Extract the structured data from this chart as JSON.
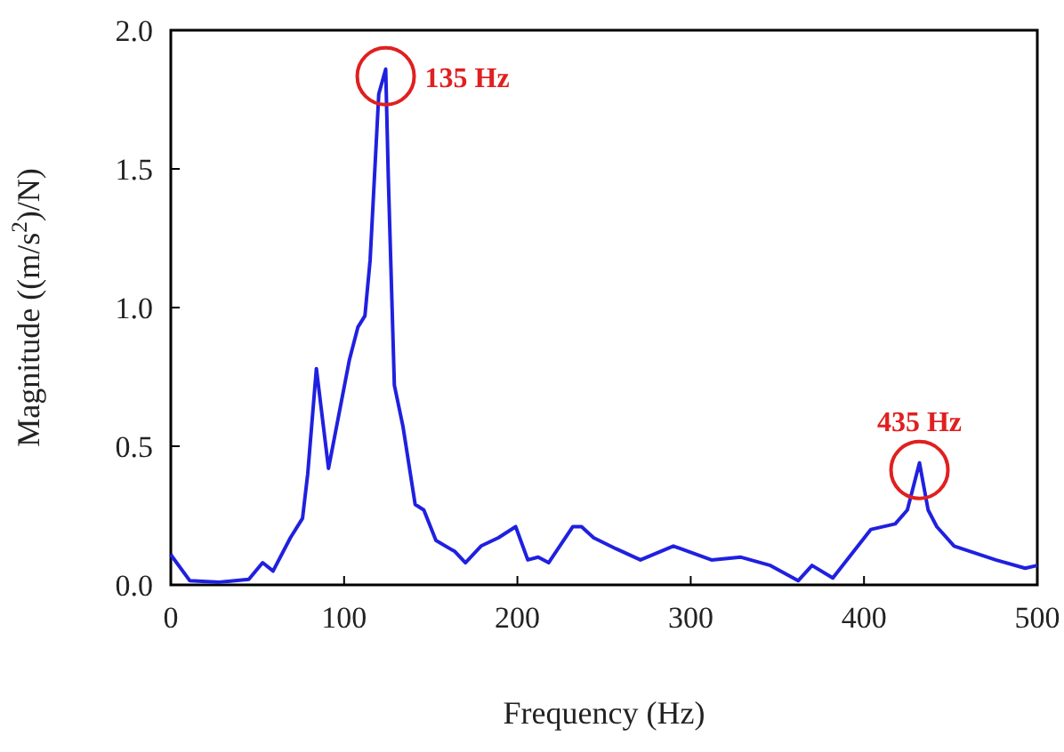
{
  "chart_data": {
    "type": "line",
    "xlabel": "Frequency (Hz)",
    "ylabel": "Magnitude ((m/s$^{2}$)/N)",
    "xlim": [
      0,
      500
    ],
    "ylim": [
      0,
      2.0
    ],
    "xticks": [
      0,
      100,
      200,
      300,
      400,
      500
    ],
    "yticks": [
      {
        "value": 0,
        "label": "0.0"
      },
      {
        "value": 0.5,
        "label": "0.5"
      },
      {
        "value": 1,
        "label": "1.0"
      },
      {
        "value": 1.5,
        "label": "1.5"
      },
      {
        "value": 2,
        "label": "2.0"
      }
    ],
    "grid": false,
    "marker": "none",
    "line_style": "solid",
    "series": [
      {
        "color": "#2020e0",
        "x": [
          0,
          1,
          11,
          28,
          45,
          53,
          59,
          69,
          76,
          79,
          84,
          91,
          103,
          108,
          112,
          115,
          120,
          124,
          125.5,
          129,
          134,
          141,
          146,
          153,
          164,
          170,
          179,
          189,
          199,
          206,
          212,
          218,
          232,
          237,
          244,
          257,
          271,
          290,
          312,
          329,
          346,
          362,
          370,
          382,
          404,
          418,
          425,
          432,
          437,
          442,
          452,
          476,
          493,
          500
        ],
        "values": [
          0.11,
          0.1,
          0.015,
          0.01,
          0.02,
          0.08,
          0.05,
          0.17,
          0.24,
          0.4,
          0.78,
          0.42,
          0.81,
          0.93,
          0.97,
          1.17,
          1.77,
          1.86,
          1.47,
          0.72,
          0.57,
          0.29,
          0.27,
          0.16,
          0.12,
          0.08,
          0.14,
          0.17,
          0.21,
          0.09,
          0.1,
          0.08,
          0.21,
          0.21,
          0.17,
          0.13,
          0.09,
          0.14,
          0.09,
          0.1,
          0.07,
          0.015,
          0.07,
          0.025,
          0.2,
          0.22,
          0.27,
          0.44,
          0.27,
          0.21,
          0.14,
          0.09,
          0.06,
          0.07
        ]
      }
    ],
    "annotations": [
      {
        "text": "135 Hz",
        "x": 124,
        "y": 1.86
      },
      {
        "text": "435 Hz",
        "x": 432,
        "y": 0.44
      }
    ]
  }
}
